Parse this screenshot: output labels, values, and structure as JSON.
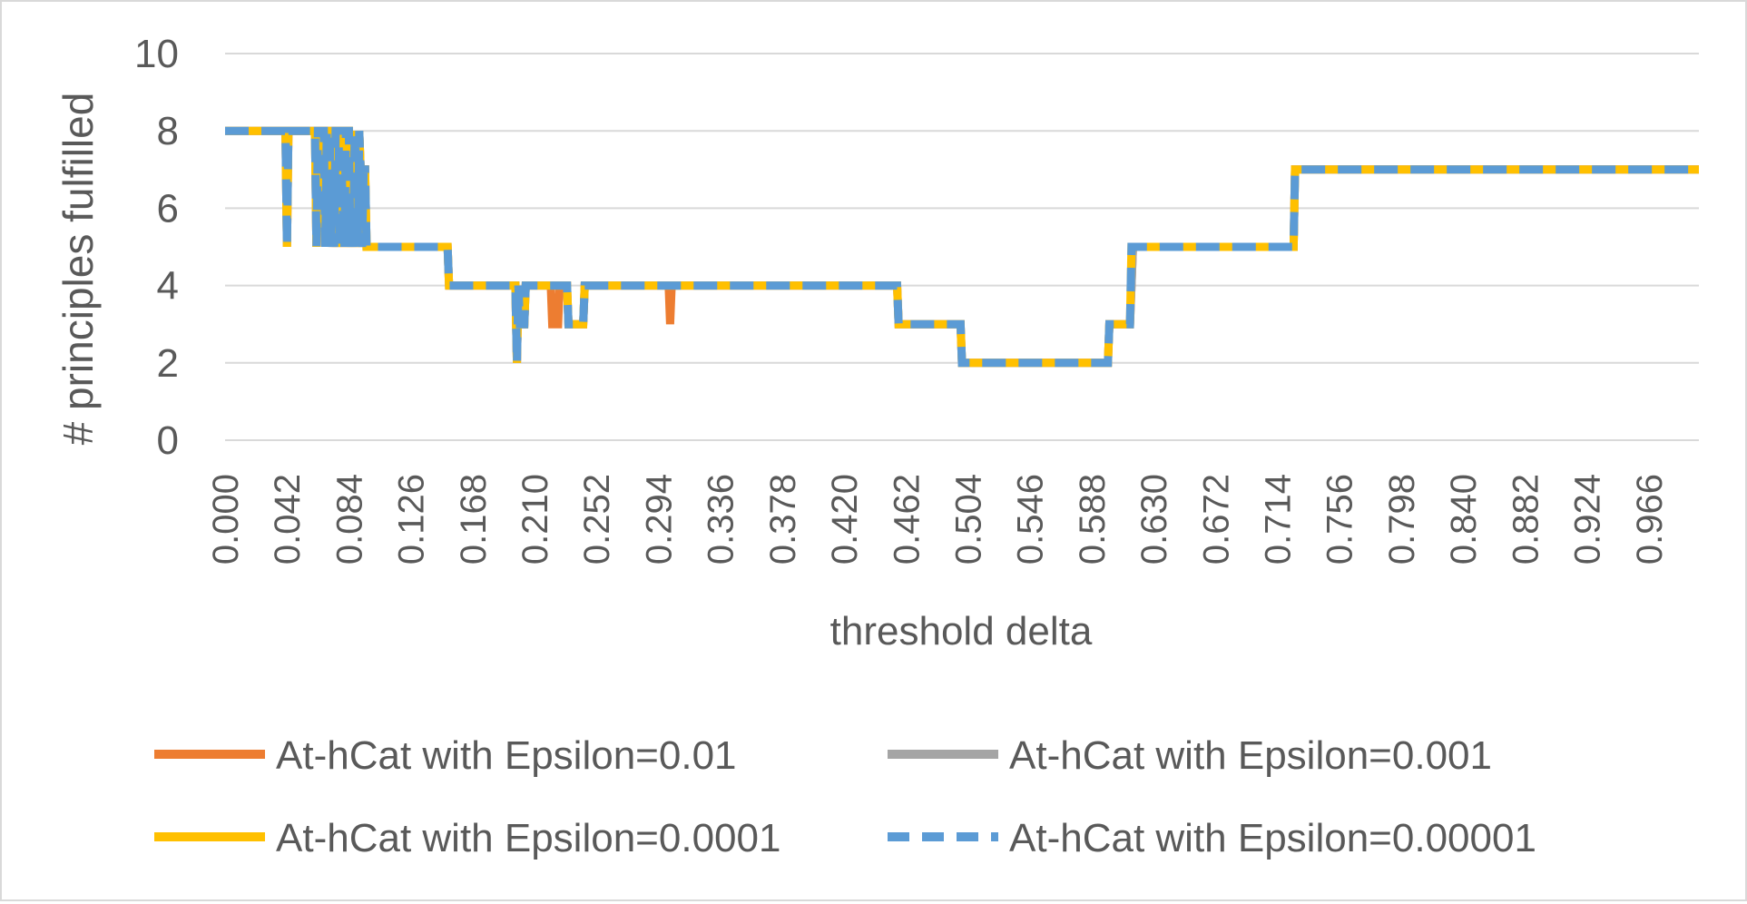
{
  "chart_data": {
    "type": "line",
    "title": "",
    "xlabel": "threshold delta",
    "ylabel": "# principles fulfilled",
    "xlim": [
      0,
      1
    ],
    "ylim": [
      0,
      10
    ],
    "y_ticks": [
      "0",
      "2",
      "4",
      "6",
      "8",
      "10"
    ],
    "x_ticks": [
      "0.000",
      "0.042",
      "0.084",
      "0.126",
      "0.168",
      "0.210",
      "0.252",
      "0.294",
      "0.336",
      "0.378",
      "0.420",
      "0.462",
      "0.504",
      "0.546",
      "0.588",
      "0.630",
      "0.672",
      "0.714",
      "0.756",
      "0.798",
      "0.840",
      "0.882",
      "0.924",
      "0.966"
    ],
    "grid": "horizontal",
    "legend_position": "bottom",
    "series": [
      {
        "name": "At-hCat with Epsilon=0.01",
        "color": "#ed7d31",
        "dash": "solid",
        "points": [
          [
            0,
            8
          ],
          [
            0.041,
            8
          ],
          [
            0.042,
            5
          ],
          [
            0.043,
            8
          ],
          [
            0.061,
            8
          ],
          [
            0.062,
            5
          ],
          [
            0.063,
            8
          ],
          [
            0.067,
            8
          ],
          [
            0.068,
            5
          ],
          [
            0.069,
            8
          ],
          [
            0.071,
            8
          ],
          [
            0.072,
            5
          ],
          [
            0.073,
            7
          ],
          [
            0.074,
            5
          ],
          [
            0.075,
            8
          ],
          [
            0.077,
            8
          ],
          [
            0.078,
            5
          ],
          [
            0.079,
            7
          ],
          [
            0.081,
            5
          ],
          [
            0.082,
            8
          ],
          [
            0.084,
            8
          ],
          [
            0.085,
            5
          ],
          [
            0.086,
            6
          ],
          [
            0.087,
            5
          ],
          [
            0.088,
            8
          ],
          [
            0.089,
            7
          ],
          [
            0.09,
            5
          ],
          [
            0.091,
            8
          ],
          [
            0.092,
            7
          ],
          [
            0.093,
            5
          ],
          [
            0.094,
            7
          ],
          [
            0.095,
            7
          ],
          [
            0.096,
            5
          ],
          [
            0.151,
            5
          ],
          [
            0.152,
            4
          ],
          [
            0.197,
            4
          ],
          [
            0.198,
            2
          ],
          [
            0.199,
            4
          ],
          [
            0.2,
            3
          ],
          [
            0.203,
            3
          ],
          [
            0.204,
            4
          ],
          [
            0.221,
            4
          ],
          [
            0.222,
            3
          ],
          [
            0.226,
            3
          ],
          [
            0.227,
            4
          ],
          [
            0.232,
            4
          ],
          [
            0.233,
            3
          ],
          [
            0.243,
            3
          ],
          [
            0.244,
            4
          ],
          [
            0.301,
            4
          ],
          [
            0.302,
            3
          ],
          [
            0.303,
            4
          ],
          [
            0.456,
            4
          ],
          [
            0.457,
            3
          ],
          [
            0.499,
            3
          ],
          [
            0.5,
            2
          ],
          [
            0.599,
            2
          ],
          [
            0.6,
            3
          ],
          [
            0.614,
            3
          ],
          [
            0.615,
            4
          ],
          [
            0.616,
            5
          ],
          [
            0.725,
            5
          ],
          [
            0.726,
            7
          ],
          [
            1,
            7
          ]
        ]
      },
      {
        "name": "At-hCat with Epsilon=0.001",
        "color": "#a5a5a5",
        "dash": "solid",
        "points": [
          [
            0,
            8
          ],
          [
            0.041,
            8
          ],
          [
            0.042,
            5
          ],
          [
            0.043,
            8
          ],
          [
            0.061,
            8
          ],
          [
            0.062,
            5
          ],
          [
            0.063,
            8
          ],
          [
            0.067,
            8
          ],
          [
            0.068,
            5
          ],
          [
            0.069,
            8
          ],
          [
            0.071,
            8
          ],
          [
            0.072,
            5
          ],
          [
            0.073,
            7
          ],
          [
            0.074,
            5
          ],
          [
            0.075,
            8
          ],
          [
            0.077,
            8
          ],
          [
            0.078,
            5
          ],
          [
            0.079,
            7
          ],
          [
            0.081,
            5
          ],
          [
            0.082,
            8
          ],
          [
            0.084,
            8
          ],
          [
            0.085,
            5
          ],
          [
            0.086,
            6
          ],
          [
            0.087,
            5
          ],
          [
            0.088,
            8
          ],
          [
            0.089,
            7
          ],
          [
            0.09,
            5
          ],
          [
            0.091,
            8
          ],
          [
            0.092,
            7
          ],
          [
            0.093,
            5
          ],
          [
            0.094,
            7
          ],
          [
            0.095,
            7
          ],
          [
            0.096,
            5
          ],
          [
            0.151,
            5
          ],
          [
            0.152,
            4
          ],
          [
            0.197,
            4
          ],
          [
            0.198,
            2
          ],
          [
            0.199,
            4
          ],
          [
            0.2,
            3
          ],
          [
            0.203,
            3
          ],
          [
            0.204,
            4
          ],
          [
            0.232,
            4
          ],
          [
            0.233,
            3
          ],
          [
            0.243,
            3
          ],
          [
            0.244,
            4
          ],
          [
            0.456,
            4
          ],
          [
            0.457,
            3
          ],
          [
            0.499,
            3
          ],
          [
            0.5,
            2
          ],
          [
            0.599,
            2
          ],
          [
            0.6,
            3
          ],
          [
            0.614,
            3
          ],
          [
            0.615,
            4
          ],
          [
            0.616,
            5
          ],
          [
            0.725,
            5
          ],
          [
            0.726,
            7
          ],
          [
            1,
            7
          ]
        ]
      },
      {
        "name": "At-hCat with Epsilon=0.0001",
        "color": "#ffc000",
        "dash": "solid",
        "points": [
          [
            0,
            8
          ],
          [
            0.041,
            8
          ],
          [
            0.042,
            5
          ],
          [
            0.043,
            8
          ],
          [
            0.061,
            8
          ],
          [
            0.062,
            5
          ],
          [
            0.063,
            8
          ],
          [
            0.067,
            8
          ],
          [
            0.068,
            5
          ],
          [
            0.069,
            8
          ],
          [
            0.071,
            8
          ],
          [
            0.072,
            5
          ],
          [
            0.073,
            7
          ],
          [
            0.074,
            5
          ],
          [
            0.075,
            8
          ],
          [
            0.077,
            8
          ],
          [
            0.078,
            5
          ],
          [
            0.079,
            7
          ],
          [
            0.081,
            5
          ],
          [
            0.082,
            8
          ],
          [
            0.084,
            8
          ],
          [
            0.085,
            5
          ],
          [
            0.086,
            6
          ],
          [
            0.087,
            5
          ],
          [
            0.088,
            8
          ],
          [
            0.089,
            7
          ],
          [
            0.09,
            5
          ],
          [
            0.091,
            8
          ],
          [
            0.092,
            7
          ],
          [
            0.093,
            5
          ],
          [
            0.094,
            7
          ],
          [
            0.095,
            7
          ],
          [
            0.096,
            5
          ],
          [
            0.151,
            5
          ],
          [
            0.152,
            4
          ],
          [
            0.197,
            4
          ],
          [
            0.198,
            2
          ],
          [
            0.199,
            4
          ],
          [
            0.2,
            3
          ],
          [
            0.203,
            3
          ],
          [
            0.204,
            4
          ],
          [
            0.232,
            4
          ],
          [
            0.233,
            3
          ],
          [
            0.243,
            3
          ],
          [
            0.244,
            4
          ],
          [
            0.456,
            4
          ],
          [
            0.457,
            3
          ],
          [
            0.499,
            3
          ],
          [
            0.5,
            2
          ],
          [
            0.599,
            2
          ],
          [
            0.6,
            3
          ],
          [
            0.614,
            3
          ],
          [
            0.615,
            5
          ],
          [
            0.725,
            5
          ],
          [
            0.726,
            7
          ],
          [
            1,
            7
          ]
        ]
      },
      {
        "name": "At-hCat with Epsilon=0.00001",
        "color": "#5b9bd5",
        "dash": "dashed",
        "points": [
          [
            0,
            8
          ],
          [
            0.041,
            8
          ],
          [
            0.042,
            5
          ],
          [
            0.043,
            8
          ],
          [
            0.061,
            8
          ],
          [
            0.062,
            5
          ],
          [
            0.063,
            8
          ],
          [
            0.067,
            8
          ],
          [
            0.068,
            5
          ],
          [
            0.069,
            8
          ],
          [
            0.071,
            8
          ],
          [
            0.072,
            5
          ],
          [
            0.073,
            7
          ],
          [
            0.074,
            5
          ],
          [
            0.075,
            8
          ],
          [
            0.077,
            8
          ],
          [
            0.078,
            5
          ],
          [
            0.079,
            7
          ],
          [
            0.081,
            5
          ],
          [
            0.082,
            8
          ],
          [
            0.084,
            8
          ],
          [
            0.085,
            5
          ],
          [
            0.086,
            6
          ],
          [
            0.087,
            5
          ],
          [
            0.088,
            8
          ],
          [
            0.089,
            7
          ],
          [
            0.09,
            5
          ],
          [
            0.091,
            8
          ],
          [
            0.092,
            7
          ],
          [
            0.093,
            5
          ],
          [
            0.094,
            7
          ],
          [
            0.095,
            7
          ],
          [
            0.096,
            5
          ],
          [
            0.151,
            5
          ],
          [
            0.152,
            4
          ],
          [
            0.197,
            4
          ],
          [
            0.198,
            2
          ],
          [
            0.199,
            4
          ],
          [
            0.2,
            3
          ],
          [
            0.203,
            3
          ],
          [
            0.204,
            4
          ],
          [
            0.232,
            4
          ],
          [
            0.233,
            3
          ],
          [
            0.243,
            3
          ],
          [
            0.244,
            4
          ],
          [
            0.456,
            4
          ],
          [
            0.457,
            3
          ],
          [
            0.499,
            3
          ],
          [
            0.5,
            2
          ],
          [
            0.599,
            2
          ],
          [
            0.6,
            3
          ],
          [
            0.614,
            3
          ],
          [
            0.615,
            5
          ],
          [
            0.725,
            5
          ],
          [
            0.726,
            7
          ],
          [
            1,
            7
          ]
        ]
      }
    ]
  }
}
